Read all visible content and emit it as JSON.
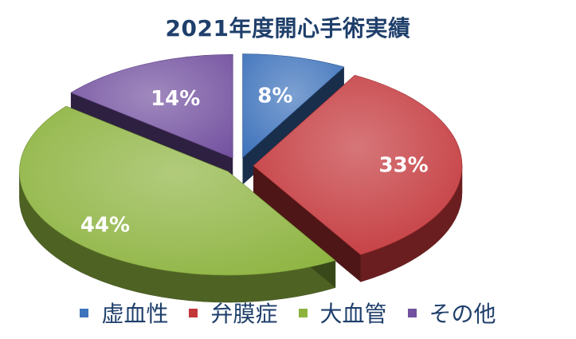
{
  "chart_data": {
    "type": "pie",
    "title": "2021年度開心手術実績",
    "categories": [
      "虚血性",
      "弁膜症",
      "大血管",
      "その他"
    ],
    "values": [
      8,
      33,
      44,
      14
    ],
    "labels": [
      "8%",
      "33%",
      "44%",
      "14%"
    ],
    "colors": [
      "#3F73BC",
      "#C3363A",
      "#8DB33F",
      "#7351A0"
    ],
    "legend_position": "bottom",
    "exploded": true,
    "three_d": true
  }
}
